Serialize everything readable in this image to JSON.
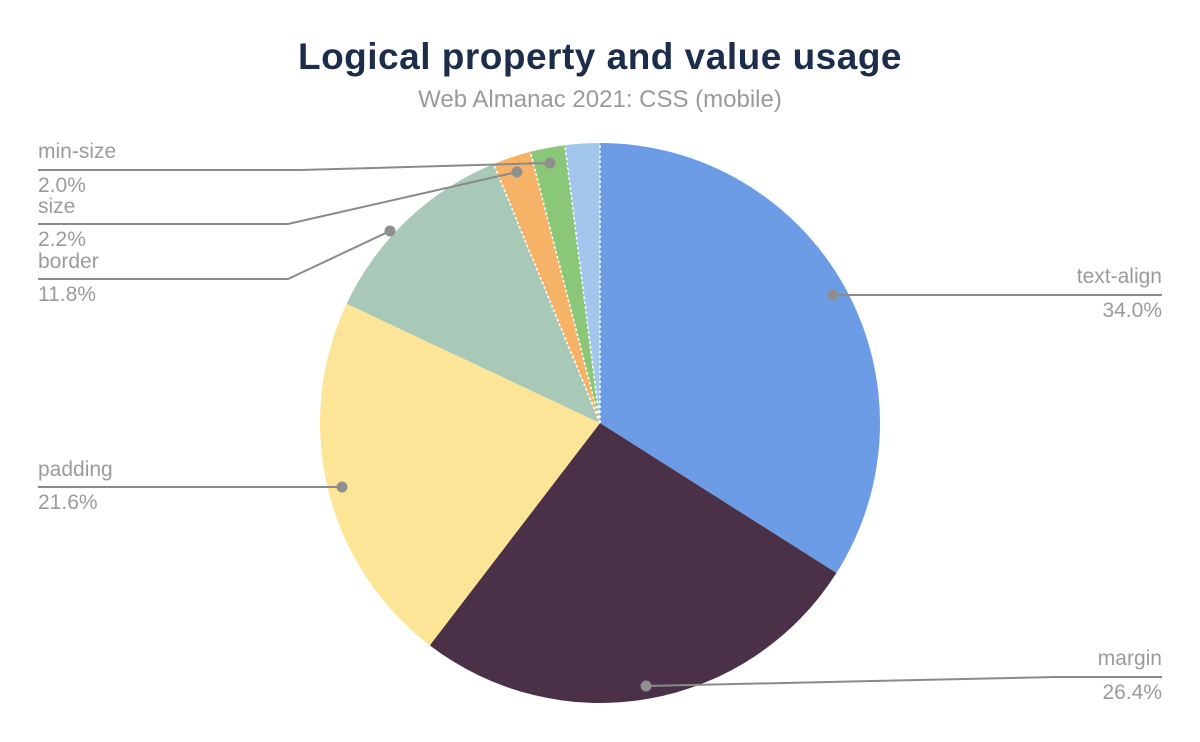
{
  "title": "Logical property and value usage",
  "subtitle": "Web Almanac 2021: CSS (mobile)",
  "chart_data": {
    "type": "pie",
    "title": "Logical property and value usage",
    "subtitle": "Web Almanac 2021: CSS (mobile)",
    "unit": "%",
    "direction": "clockwise",
    "start_angle": "12 o'clock",
    "slices": [
      {
        "label": "text-align",
        "value": 34.0,
        "display": "34.0%",
        "color": "#6c9ce6"
      },
      {
        "label": "margin",
        "value": 26.4,
        "display": "26.4%",
        "color": "#4b3148"
      },
      {
        "label": "padding",
        "value": 21.6,
        "display": "21.6%",
        "color": "#fde598"
      },
      {
        "label": "border",
        "value": 11.8,
        "display": "11.8%",
        "color": "#a8c8b8"
      },
      {
        "label": "size",
        "value": 2.2,
        "display": "2.2%",
        "color": "#f6b266"
      },
      {
        "label": "min-size",
        "value": 2.0,
        "display": "2.0%",
        "color": "#8bc778"
      },
      {
        "label": "",
        "value": 2.0,
        "display": "",
        "color": "#a3c7ec"
      }
    ],
    "colors": {
      "title": "#1b2d4b",
      "subtitle": "#9a9a9a",
      "label_text": "#9b9b9b",
      "leader_line": "#8a8a8a",
      "leader_dot": "#8f8f8f",
      "separator": "#ffffff"
    },
    "legend": "none (leader-line data labels)"
  }
}
